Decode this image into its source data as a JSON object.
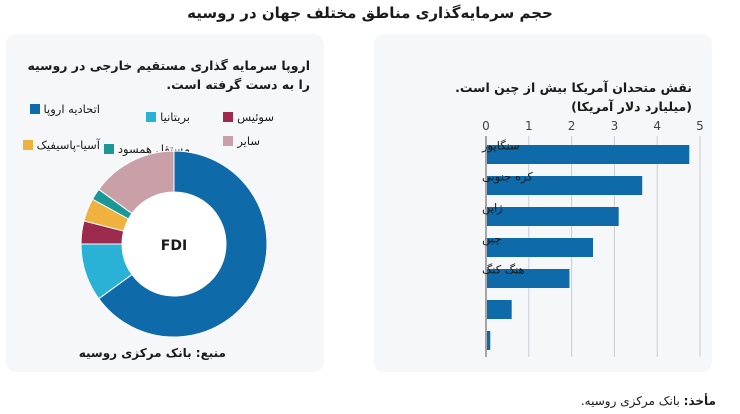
{
  "title": "حجم سرمایه‌گذاری مناطق مختلف جهان در روسیه",
  "colors": {
    "dark_blue": "#0e6aa8",
    "light_blue": "#2ab2d6",
    "maroon": "#9c2a4d",
    "orange": "#f0b23f",
    "teal": "#1a9898",
    "pink": "#c9a0a8",
    "panel": "#f6f7f8"
  },
  "chart_data": [
    {
      "type": "pie",
      "title_lines": [
        "اروپا سرمایه گذاری مستقیم خارجی در روسیه",
        "را به دست گرفته است."
      ],
      "center_label": "FDI",
      "series": [
        {
          "name": "اتحادیه اروپا",
          "value": 65,
          "color": "#0e6aa8"
        },
        {
          "name": "بریتانیا",
          "value": 10,
          "color": "#2ab2d6"
        },
        {
          "name": "سوئیس",
          "value": 4,
          "color": "#9c2a4d"
        },
        {
          "name": "آسیا-پاسیفیک",
          "value": 4,
          "color": "#f0b23f"
        },
        {
          "name": "مستقل همسود",
          "value": 2,
          "color": "#1a9898"
        },
        {
          "name": "سایر",
          "value": 15,
          "color": "#c9a0a8"
        }
      ],
      "source": "منبع: بانک مرکزی روسیه"
    },
    {
      "type": "bar",
      "orientation": "horizontal",
      "title_lines": [
        "نقش متحدان آمریکا بیش از چین است.",
        "(میلیارد دلار آمریکا)"
      ],
      "categories": [
        "سنگاپور",
        "کره جنوبی",
        "ژاپن",
        "چین",
        "هنگ کنگ",
        "",
        ""
      ],
      "values": [
        4.75,
        3.65,
        3.1,
        2.5,
        1.95,
        0.6,
        0.1
      ],
      "xlim": [
        0,
        5
      ],
      "xticks": [
        "0",
        "1",
        "2",
        "3",
        "4",
        "5"
      ],
      "bar_color": "#0e6aa8",
      "grid": true
    }
  ],
  "footnote": {
    "label": "مأخذ:",
    "text": " بانک مرکزی روسیه."
  }
}
